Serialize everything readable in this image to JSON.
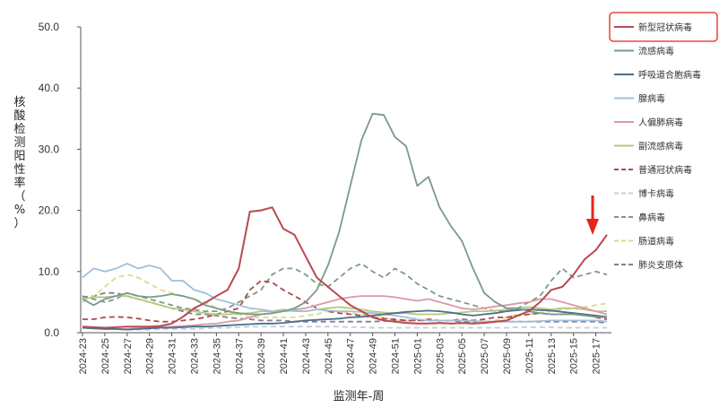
{
  "chart_data": {
    "type": "line",
    "xlabel": "监测年-周",
    "ylabel": "核酸检测阳性率（%）",
    "ylim": [
      0,
      50
    ],
    "yticks": [
      "0.0",
      "10.0",
      "20.0",
      "30.0",
      "40.0",
      "50.0"
    ],
    "categories": [
      "2024-23",
      "2024-24",
      "2024-25",
      "2024-26",
      "2024-27",
      "2024-28",
      "2024-29",
      "2024-30",
      "2024-31",
      "2024-32",
      "2024-33",
      "2024-34",
      "2024-35",
      "2024-36",
      "2024-37",
      "2024-38",
      "2024-39",
      "2024-40",
      "2024-41",
      "2024-42",
      "2024-43",
      "2024-44",
      "2024-45",
      "2024-46",
      "2024-47",
      "2024-48",
      "2024-49",
      "2024-50",
      "2024-51",
      "2024-52",
      "2025-01",
      "2025-02",
      "2025-03",
      "2025-04",
      "2025-05",
      "2025-06",
      "2025-07",
      "2025-08",
      "2025-09",
      "2025-10",
      "2025-11",
      "2025-12",
      "2025-13",
      "2025-14",
      "2025-15",
      "2025-16",
      "2025-17",
      "2025-18"
    ],
    "xtick_labels": [
      "2024-23",
      "2024-25",
      "2024-27",
      "2024-29",
      "2024-31",
      "2024-33",
      "2024-35",
      "2024-37",
      "2024-39",
      "2024-41",
      "2024-43",
      "2024-45",
      "2024-47",
      "2024-49",
      "2024-51",
      "2025-01",
      "2025-03",
      "2025-05",
      "2025-07",
      "2025-09",
      "2025-11",
      "2025-13",
      "2025-15",
      "2025-17"
    ],
    "grid": false,
    "legend_position": "right",
    "highlighted_series": "新型冠状病毒",
    "series": [
      {
        "name": "新型冠状病毒",
        "color": "#b84a50",
        "dash": false,
        "values": [
          1.0,
          0.9,
          0.8,
          0.9,
          1.0,
          1.0,
          1.0,
          1.1,
          1.5,
          2.6,
          4.0,
          4.9,
          6.0,
          7.0,
          10.5,
          19.8,
          20.0,
          20.5,
          17.0,
          16.0,
          12.5,
          9.0,
          7.5,
          6.0,
          4.5,
          3.5,
          2.5,
          2.0,
          1.8,
          1.6,
          1.5,
          1.5,
          1.6,
          1.5,
          1.6,
          1.5,
          1.6,
          1.8,
          2.0,
          2.8,
          3.5,
          5.0,
          7.0,
          7.5,
          9.5,
          12.0,
          13.5,
          16.0
        ]
      },
      {
        "name": "流感病毒",
        "color": "#7a9a8a",
        "dash": false,
        "values": [
          5.5,
          4.5,
          5.5,
          6.0,
          6.5,
          6.0,
          5.8,
          6.0,
          6.3,
          6.0,
          5.5,
          4.5,
          4.0,
          3.5,
          3.2,
          3.0,
          3.0,
          3.2,
          3.5,
          4.0,
          5.0,
          7.0,
          11.0,
          16.5,
          24.0,
          31.5,
          35.8,
          35.6,
          32.0,
          30.5,
          24.0,
          25.5,
          20.5,
          17.5,
          15.0,
          10.5,
          6.5,
          5.0,
          4.0,
          4.0,
          3.5,
          3.2,
          3.0,
          3.0,
          3.0,
          2.8,
          2.6,
          2.5
        ]
      },
      {
        "name": "呼吸道合胞病毒",
        "color": "#4a6f8a",
        "dash": false,
        "values": [
          0.8,
          0.7,
          0.6,
          0.6,
          0.5,
          0.6,
          0.7,
          0.8,
          0.8,
          0.9,
          1.0,
          1.0,
          1.1,
          1.2,
          1.3,
          1.4,
          1.5,
          1.5,
          1.6,
          1.8,
          2.0,
          2.1,
          2.2,
          2.3,
          2.5,
          2.6,
          2.8,
          3.0,
          3.2,
          3.4,
          3.5,
          3.6,
          3.5,
          3.3,
          3.0,
          2.8,
          3.0,
          3.2,
          3.5,
          3.7,
          3.8,
          3.7,
          3.6,
          3.4,
          3.2,
          3.0,
          2.8,
          2.6
        ]
      },
      {
        "name": "腺病毒",
        "color": "#9fc0da",
        "dash": false,
        "values": [
          9.0,
          10.5,
          10.0,
          10.5,
          11.3,
          10.5,
          11.0,
          10.5,
          8.5,
          8.5,
          7.0,
          6.5,
          5.5,
          5.0,
          4.5,
          4.0,
          3.8,
          3.5,
          3.5,
          3.6,
          3.5,
          3.8,
          3.6,
          3.5,
          3.5,
          3.4,
          3.2,
          3.0,
          2.8,
          2.5,
          2.2,
          2.0,
          2.0,
          2.0,
          2.0,
          1.9,
          1.8,
          1.8,
          1.8,
          1.8,
          1.8,
          1.9,
          2.0,
          2.0,
          2.0,
          2.0,
          2.0,
          1.8
        ]
      },
      {
        "name": "人偏肺病毒",
        "color": "#d99aaa",
        "dash": false,
        "values": [
          0.8,
          0.7,
          0.6,
          0.6,
          0.6,
          0.7,
          0.8,
          0.9,
          1.0,
          1.1,
          1.2,
          1.4,
          1.5,
          1.8,
          2.0,
          2.5,
          3.0,
          3.2,
          3.5,
          3.8,
          4.0,
          4.5,
          5.0,
          5.5,
          5.8,
          6.0,
          6.0,
          6.0,
          5.8,
          5.5,
          5.2,
          5.5,
          5.0,
          4.5,
          4.0,
          3.8,
          4.0,
          4.3,
          4.5,
          4.8,
          5.0,
          5.5,
          5.5,
          5.0,
          4.5,
          4.0,
          3.5,
          3.0
        ]
      },
      {
        "name": "副流感病毒",
        "color": "#b5c97a",
        "dash": false,
        "values": [
          5.5,
          5.8,
          5.8,
          6.0,
          6.0,
          5.5,
          5.0,
          4.5,
          4.0,
          3.8,
          3.5,
          3.2,
          3.0,
          3.0,
          3.1,
          3.2,
          3.5,
          3.5,
          3.8,
          3.5,
          3.5,
          3.8,
          4.0,
          4.2,
          4.0,
          3.8,
          3.5,
          3.3,
          3.2,
          3.2,
          3.0,
          3.0,
          3.0,
          3.2,
          3.3,
          3.5,
          3.5,
          3.6,
          3.8,
          4.0,
          4.2,
          4.0,
          3.8,
          4.0,
          4.0,
          3.8,
          3.5,
          3.5
        ]
      },
      {
        "name": "普通冠状病毒",
        "color": "#a94a4a",
        "dash": true,
        "values": [
          2.2,
          2.2,
          2.5,
          2.6,
          2.5,
          2.3,
          2.0,
          1.8,
          1.8,
          2.0,
          2.2,
          2.5,
          3.0,
          3.5,
          4.0,
          7.0,
          8.5,
          8.2,
          7.0,
          6.0,
          5.0,
          4.0,
          3.5,
          3.2,
          3.0,
          2.8,
          2.5,
          2.3,
          2.2,
          2.0,
          2.0,
          2.2,
          2.0,
          2.0,
          2.2,
          2.0,
          2.2,
          2.5,
          2.5,
          2.8,
          3.0,
          3.2,
          3.0,
          3.0,
          3.2,
          3.0,
          2.5,
          2.2
        ]
      },
      {
        "name": "博卡病毒",
        "color": "#bcd0e0",
        "dash": true,
        "values": [
          0.8,
          0.7,
          0.6,
          0.6,
          0.5,
          0.5,
          0.5,
          0.6,
          0.6,
          0.6,
          0.6,
          0.7,
          0.8,
          0.8,
          0.9,
          1.0,
          1.0,
          1.0,
          1.0,
          1.0,
          1.0,
          1.0,
          1.0,
          1.0,
          0.9,
          0.9,
          0.8,
          0.8,
          0.8,
          0.8,
          0.8,
          0.8,
          0.8,
          0.8,
          0.8,
          0.8,
          0.8,
          0.8,
          0.8,
          0.9,
          0.9,
          0.9,
          0.9,
          0.8,
          0.8,
          0.8,
          0.8,
          0.8
        ]
      },
      {
        "name": "鼻病毒",
        "color": "#7a9a8a",
        "dash": true,
        "values": [
          6.0,
          5.5,
          5.0,
          5.5,
          6.5,
          6.0,
          5.5,
          5.0,
          4.5,
          4.0,
          3.8,
          3.5,
          3.5,
          4.0,
          5.0,
          6.0,
          7.0,
          9.5,
          10.5,
          10.5,
          9.5,
          8.0,
          7.5,
          9.0,
          10.5,
          11.3,
          10.0,
          9.0,
          10.5,
          9.5,
          8.0,
          7.0,
          6.0,
          5.5,
          5.0,
          4.5,
          4.0,
          3.5,
          3.5,
          4.0,
          5.0,
          6.0,
          8.5,
          10.5,
          9.0,
          9.5,
          10.0,
          9.5
        ]
      },
      {
        "name": "肠道病毒",
        "color": "#e0d88a",
        "dash": true,
        "values": [
          5.0,
          6.0,
          7.5,
          9.0,
          9.5,
          9.0,
          8.0,
          7.0,
          6.5,
          6.0,
          5.5,
          5.0,
          4.0,
          3.5,
          3.0,
          2.5,
          2.5,
          2.5,
          2.5,
          2.5,
          2.8,
          3.0,
          3.5,
          3.5,
          3.2,
          3.0,
          2.8,
          2.5,
          2.0,
          1.8,
          1.5,
          1.5,
          1.5,
          1.5,
          1.5,
          1.5,
          1.8,
          2.0,
          2.5,
          3.0,
          3.0,
          3.2,
          3.5,
          3.8,
          4.0,
          4.2,
          4.5,
          4.8
        ]
      },
      {
        "name": "肺炎支原体",
        "color": "#8a7a8e",
        "dash": true,
        "values": [
          5.8,
          6.0,
          6.5,
          6.5,
          6.0,
          5.5,
          5.0,
          4.5,
          4.0,
          3.5,
          3.0,
          3.0,
          2.8,
          2.5,
          2.3,
          2.2,
          2.0,
          2.0,
          2.0,
          1.8,
          1.8,
          1.8,
          1.8,
          1.8,
          1.8,
          1.8,
          1.8,
          1.9,
          2.0,
          2.0,
          2.0,
          2.0,
          2.0,
          2.0,
          1.8,
          1.8,
          1.8,
          1.8,
          1.8,
          1.8,
          1.8,
          1.8,
          1.8,
          1.8,
          1.8,
          1.8,
          1.8,
          1.6
        ]
      }
    ]
  }
}
